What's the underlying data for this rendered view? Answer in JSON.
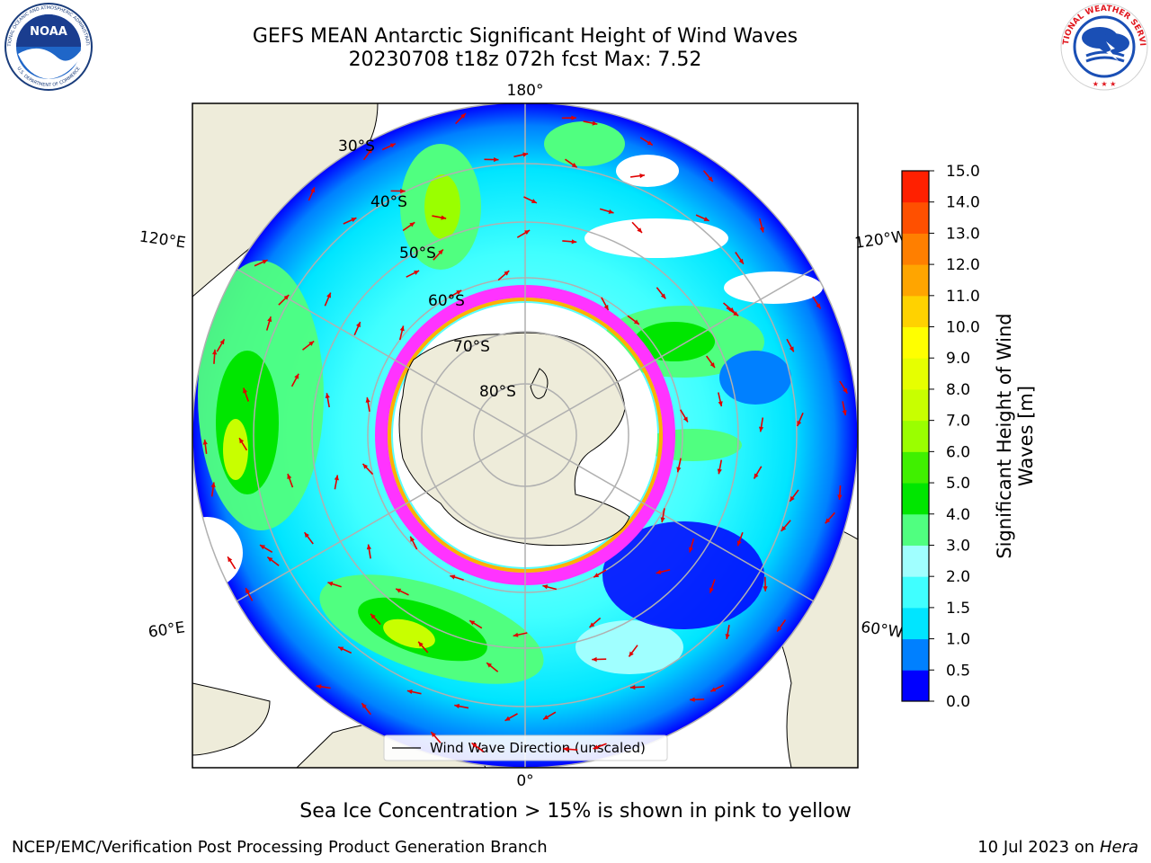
{
  "header": {
    "title_line1": "GEFS MEAN Antarctic Significant Height of Wind Waves",
    "title_line2": "20230708 t18z 072h fcst   Max: 7.52"
  },
  "logos": {
    "noaa_text": "NOAA",
    "noaa_ring_text": "NATIONAL OCEANIC AND ATMOSPHERIC ADMINISTRATION",
    "noaa_bottom_text": "U.S. DEPARTMENT OF COMMERCE",
    "nws_ring_text": "NATIONAL WEATHER SERVICE"
  },
  "map": {
    "projection": "south-polar-stereographic",
    "longitude_labels": [
      "180°",
      "120°E",
      "120°W",
      "60°E",
      "60°W",
      "0°"
    ],
    "latitude_labels": [
      "30°S",
      "40°S",
      "50°S",
      "60°S",
      "70°S",
      "80°S"
    ],
    "legend_entry": "Wind Wave Direction (unscaled)",
    "land_color": "#eeecda",
    "ice_edge_colors": [
      "#ff33ff",
      "#ffb000",
      "#ffff00"
    ]
  },
  "colorbar": {
    "label": "Significant Height of Wind Waves [m]",
    "ticks": [
      "0.0",
      "0.5",
      "1.0",
      "1.5",
      "2.0",
      "3.0",
      "4.0",
      "5.0",
      "6.0",
      "7.0",
      "8.0",
      "9.0",
      "10.0",
      "11.0",
      "12.0",
      "13.0",
      "14.0",
      "15.0"
    ],
    "colors": [
      "#0000ff",
      "#0080ff",
      "#00e5ff",
      "#40ffff",
      "#a0ffff",
      "#50ff80",
      "#00e600",
      "#40f000",
      "#9aff00",
      "#c8ff00",
      "#e6ff00",
      "#ffff00",
      "#ffd200",
      "#ffa500",
      "#ff7f00",
      "#ff5000",
      "#ff2000"
    ]
  },
  "caption": "Sea Ice Concentration > 15% is shown in pink to yellow",
  "footer": {
    "left": "NCEP/EMC/Verification Post Processing Product Generation Branch",
    "right_date": "10 Jul 2023 on ",
    "right_system": "Hera"
  }
}
